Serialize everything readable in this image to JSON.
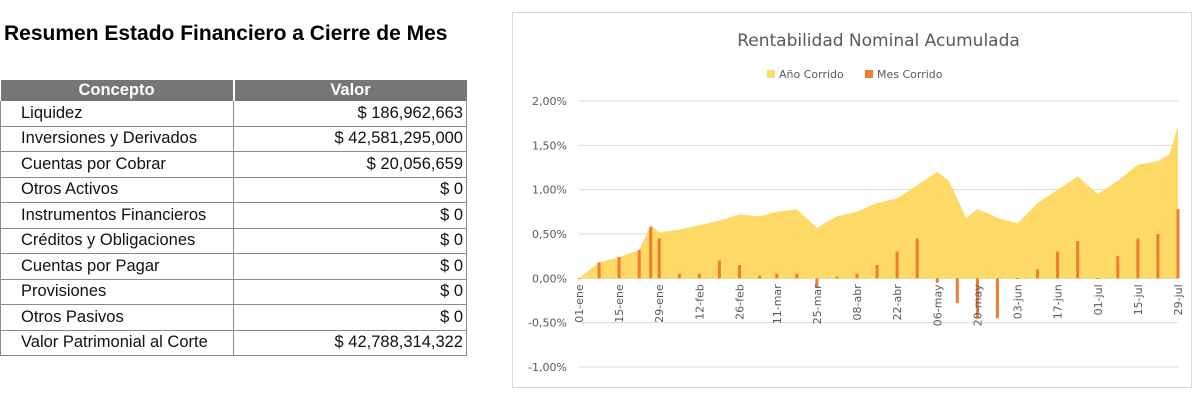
{
  "report": {
    "title": "Resumen Estado Financiero a Cierre de Mes",
    "headers": [
      "Concepto",
      "Valor"
    ],
    "rows": [
      {
        "concept": "Liquidez",
        "value": "$ 186,962,663"
      },
      {
        "concept": "Inversiones y Derivados",
        "value": "$ 42,581,295,000"
      },
      {
        "concept": "Cuentas por Cobrar",
        "value": "$ 20,056,659"
      },
      {
        "concept": "Otros Activos",
        "value": "$ 0"
      },
      {
        "concept": "Instrumentos Financieros",
        "value": "$ 0"
      },
      {
        "concept": "Créditos y Obligaciones",
        "value": "$ 0"
      },
      {
        "concept": "Cuentas por Pagar",
        "value": "$ 0"
      },
      {
        "concept": "Provisiones",
        "value": "$ 0"
      },
      {
        "concept": "Otros Pasivos",
        "value": "$ 0"
      },
      {
        "concept": "Valor Patrimonial al Corte",
        "value": "$ 42,788,314,322"
      }
    ]
  },
  "chart_data": {
    "type": "area",
    "title": "Rentabilidad Nominal Acumulada",
    "xlabel": "",
    "ylabel": "",
    "ylim": [
      -1.0,
      2.0
    ],
    "yticks": [
      -1.0,
      -0.5,
      0.0,
      0.5,
      1.0,
      1.5,
      2.0
    ],
    "ytick_labels": [
      "-1,00%",
      "-0,50%",
      "0,00%",
      "0,50%",
      "1,00%",
      "1,50%",
      "2,00%"
    ],
    "grid": true,
    "legend_position": "top-center",
    "x_range": [
      "01-ene",
      "29-jul"
    ],
    "xtick_labels": [
      "01-ene",
      "15-ene",
      "29-ene",
      "12-feb",
      "26-feb",
      "11-mar",
      "25-mar",
      "08-abr",
      "22-abr",
      "06-may",
      "20-may",
      "03-jun",
      "17-jun",
      "01-jul",
      "15-jul",
      "29-jul"
    ],
    "series": [
      {
        "name": "Año Corrido",
        "kind": "area",
        "color": "#FFD966",
        "x": [
          "01-ene",
          "08-ene",
          "15-ene",
          "22-ene",
          "26-ene",
          "29-ene",
          "05-feb",
          "12-feb",
          "19-feb",
          "26-feb",
          "05-mar",
          "11-mar",
          "18-mar",
          "25-mar",
          "01-abr",
          "08-abr",
          "15-abr",
          "22-abr",
          "29-abr",
          "06-may",
          "10-may",
          "13-may",
          "16-may",
          "20-may",
          "24-may",
          "27-may",
          "03-jun",
          "10-jun",
          "17-jun",
          "24-jun",
          "01-jul",
          "08-jul",
          "15-jul",
          "22-jul",
          "26-jul",
          "29-jul"
        ],
        "values": [
          0.0,
          0.18,
          0.24,
          0.32,
          0.6,
          0.52,
          0.55,
          0.6,
          0.65,
          0.72,
          0.7,
          0.75,
          0.78,
          0.57,
          0.7,
          0.75,
          0.85,
          0.9,
          1.05,
          1.2,
          1.1,
          0.9,
          0.68,
          0.78,
          0.73,
          0.68,
          0.62,
          0.85,
          1.0,
          1.15,
          0.95,
          1.1,
          1.28,
          1.32,
          1.4,
          1.72
        ]
      },
      {
        "name": "Mes Corrido",
        "kind": "bar",
        "color": "#ED7D31",
        "x": [
          "01-ene",
          "08-ene",
          "15-ene",
          "22-ene",
          "26-ene",
          "29-ene",
          "05-feb",
          "12-feb",
          "19-feb",
          "26-feb",
          "05-mar",
          "11-mar",
          "18-mar",
          "25-mar",
          "01-abr",
          "08-abr",
          "15-abr",
          "22-abr",
          "29-abr",
          "06-may",
          "13-may",
          "20-may",
          "27-may",
          "03-jun",
          "10-jun",
          "17-jun",
          "24-jun",
          "01-jul",
          "08-jul",
          "15-jul",
          "22-jul",
          "29-jul"
        ],
        "values": [
          0.0,
          0.18,
          0.24,
          0.32,
          0.58,
          0.45,
          0.05,
          0.05,
          0.2,
          0.15,
          0.03,
          0.05,
          0.05,
          -0.1,
          0.02,
          0.05,
          0.15,
          0.3,
          0.45,
          -0.05,
          -0.28,
          -0.45,
          -0.45,
          0.0,
          0.1,
          0.3,
          0.42,
          0.0,
          0.25,
          0.45,
          0.5,
          0.78
        ]
      }
    ]
  }
}
